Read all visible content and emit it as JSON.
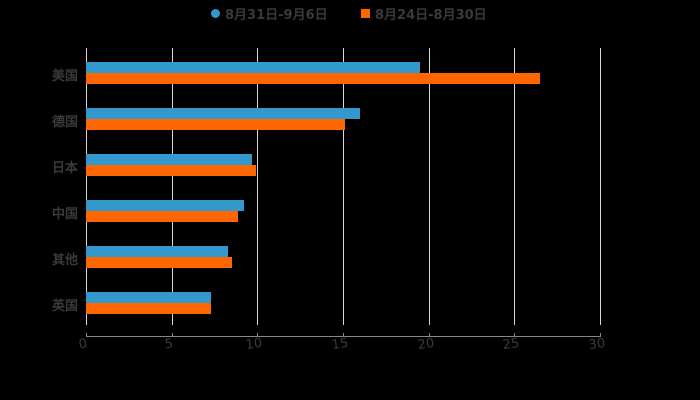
{
  "legend": [
    {
      "label": "8月31日-9月6日",
      "color": "#3399CC",
      "marker": "circle"
    },
    {
      "label": "8月24日-8月30日",
      "color": "#FF6600",
      "marker": "square"
    }
  ],
  "axis": {
    "x_ticks": [
      "0",
      "5",
      "10",
      "15",
      "20",
      "25",
      "30"
    ]
  },
  "categories": [
    "美国",
    "德国",
    "日本",
    "中国",
    "其他",
    "英国"
  ],
  "chart_data": {
    "type": "bar",
    "orientation": "horizontal",
    "title": "",
    "xlabel": "",
    "ylabel": "",
    "categories": [
      "美国",
      "德国",
      "日本",
      "中国",
      "其他",
      "英国"
    ],
    "series": [
      {
        "name": "8月31日-9月6日",
        "color": "#3399CC",
        "values": [
          19.5,
          16.0,
          9.7,
          9.2,
          8.3,
          7.3
        ]
      },
      {
        "name": "8月24日-8月30日",
        "color": "#FF6600",
        "values": [
          26.5,
          15.1,
          9.9,
          8.9,
          8.5,
          7.3
        ]
      }
    ],
    "xlim": [
      0,
      30
    ],
    "x_ticks": [
      0,
      5,
      10,
      15,
      20,
      25,
      30
    ],
    "grid": "vertical",
    "legend_position": "top"
  }
}
